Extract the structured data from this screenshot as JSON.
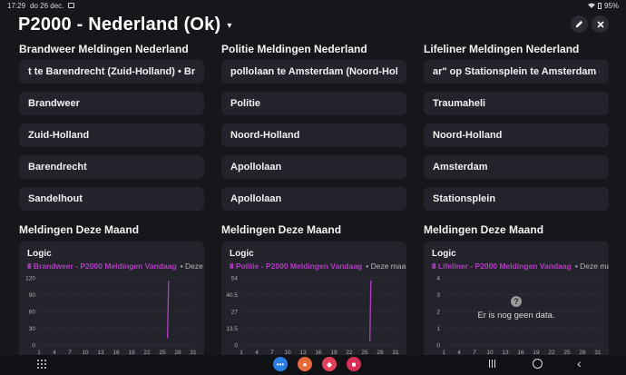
{
  "status_bar": {
    "time": "17:29",
    "date": "do 26 dec.",
    "battery": "95%"
  },
  "header": {
    "title": "P2000 - Nederland (Ok)",
    "caret": "▾",
    "edit_icon": "pencil-icon",
    "close_icon": "close-icon"
  },
  "columns": [
    {
      "title": "Brandweer Meldingen Nederland",
      "ticker": "t te Barendrecht (Zuid-Holland)  •  Bra",
      "cards": [
        "Brandweer",
        "Zuid-Holland",
        "Barendrecht",
        "Sandelhout"
      ],
      "section_title": "Meldingen Deze Maand",
      "chart_label": "Logic",
      "legend_series": "Brandweer - P2000 Meldingen Vandaag",
      "legend_other": "• Deze maand"
    },
    {
      "title": "Politie Meldingen Nederland",
      "ticker": "pollolaan te Amsterdam (Noord-Hollanc",
      "cards": [
        "Politie",
        "Noord-Holland",
        "Apollolaan",
        "Apollolaan"
      ],
      "section_title": "Meldingen Deze Maand",
      "chart_label": "Logic",
      "legend_series": "Politie - P2000 Meldingen Vandaag",
      "legend_other": "• Deze maand"
    },
    {
      "title": "Lifeliner Meldingen Nederland",
      "ticker": "ar\" op Stationsplein te Amsterdam (Noc",
      "cards": [
        "Traumaheli",
        "Noord-Holland",
        "Amsterdam",
        "Stationsplein"
      ],
      "section_title": "Meldingen Deze Maand",
      "chart_label": "Logic",
      "legend_series": "Lifeliner - P2000 Meldingen Vandaag",
      "legend_other": "• Deze maand",
      "no_data": "Er is nog geen data."
    }
  ],
  "chart_data": [
    {
      "type": "line",
      "series": [
        {
          "name": "Brandweer - P2000 Meldingen Vandaag",
          "x": [
            26,
            26.2
          ],
          "values": [
            12,
            115
          ]
        }
      ],
      "y_ticks": [
        "120",
        "90",
        "60",
        "30",
        "0"
      ],
      "x_ticks": [
        "1",
        "4",
        "7",
        "10",
        "13",
        "16",
        "19",
        "22",
        "25",
        "28",
        "31"
      ],
      "ylim": [
        0,
        120
      ],
      "xlim": [
        1,
        31
      ],
      "color": "#b53bc4"
    },
    {
      "type": "line",
      "series": [
        {
          "name": "Politie - P2000 Meldingen Vandaag",
          "x": [
            26,
            26.2
          ],
          "values": [
            3,
            52
          ]
        }
      ],
      "y_ticks": [
        "54",
        "40.5",
        "27",
        "13.5",
        "0"
      ],
      "x_ticks": [
        "1",
        "4",
        "7",
        "10",
        "13",
        "16",
        "19",
        "22",
        "25",
        "28",
        "31"
      ],
      "ylim": [
        0,
        54
      ],
      "xlim": [
        1,
        31
      ],
      "color": "#b53bc4"
    },
    {
      "type": "line",
      "series": [],
      "y_ticks": [
        "4",
        "3",
        "2",
        "1",
        "0"
      ],
      "x_ticks": [
        "1",
        "4",
        "7",
        "10",
        "13",
        "16",
        "19",
        "22",
        "25",
        "28",
        "31"
      ],
      "ylim": [
        0,
        4
      ],
      "xlim": [
        1,
        31
      ],
      "color": "#b53bc4"
    }
  ],
  "nav": {
    "apps": [
      "messages-app-icon",
      "contacts-app-icon",
      "shop-app-icon",
      "camera-app-icon"
    ]
  }
}
